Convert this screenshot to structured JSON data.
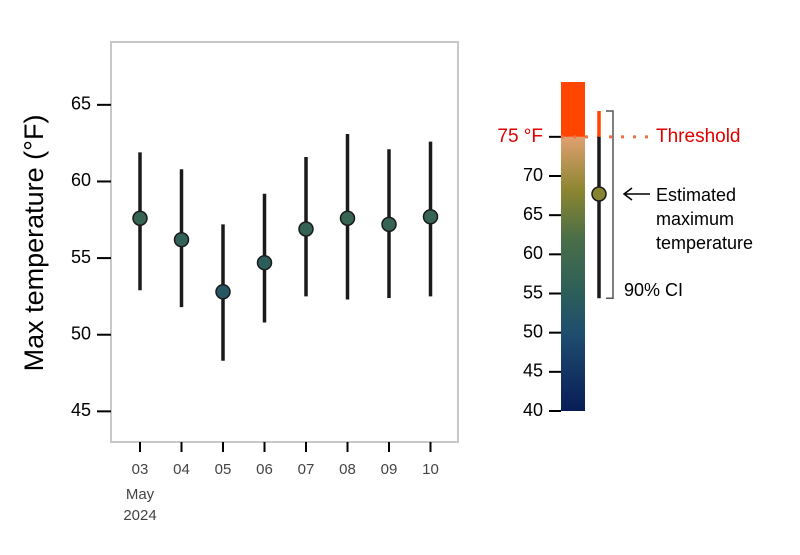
{
  "chart_data": {
    "type": "errorbar",
    "y_label": "Max temperature (°F)",
    "categories": [
      "03",
      "04",
      "05",
      "06",
      "07",
      "08",
      "09",
      "10"
    ],
    "x_sublabels": [
      "May",
      "2024"
    ],
    "values": [
      57.6,
      56.2,
      52.8,
      54.7,
      56.9,
      57.6,
      57.2,
      57.7
    ],
    "low": [
      52.9,
      51.8,
      48.3,
      50.8,
      52.5,
      52.3,
      52.4,
      52.5
    ],
    "high": [
      61.9,
      60.8,
      57.2,
      59.2,
      61.6,
      63.1,
      62.1,
      62.6
    ],
    "ylim": [
      43,
      69.1
    ],
    "yticks": [
      45,
      50,
      55,
      60,
      65
    ],
    "colorbar": {
      "lim": [
        40,
        82
      ],
      "ticks": [
        40,
        45,
        50,
        55,
        60,
        65,
        70
      ],
      "stops": [
        {
          "value": 40,
          "color": "#081d58"
        },
        {
          "value": 50,
          "color": "#1f4e6e"
        },
        {
          "value": 55,
          "color": "#2c5e5a"
        },
        {
          "value": 62,
          "color": "#4a6e48"
        },
        {
          "value": 68,
          "color": "#8a8530"
        },
        {
          "value": 75,
          "color": "#e0a070"
        }
      ],
      "above_color": "#ff4500"
    },
    "threshold": {
      "value": 75,
      "tick_label": "75 °F",
      "label": "Threshold",
      "color": "#f07040"
    },
    "legend_example": {
      "value": 67.7,
      "low": 54.4,
      "high": 78.3,
      "label": "Estimated\nmaximum\ntemperature",
      "ci_label": "90% CI"
    }
  }
}
